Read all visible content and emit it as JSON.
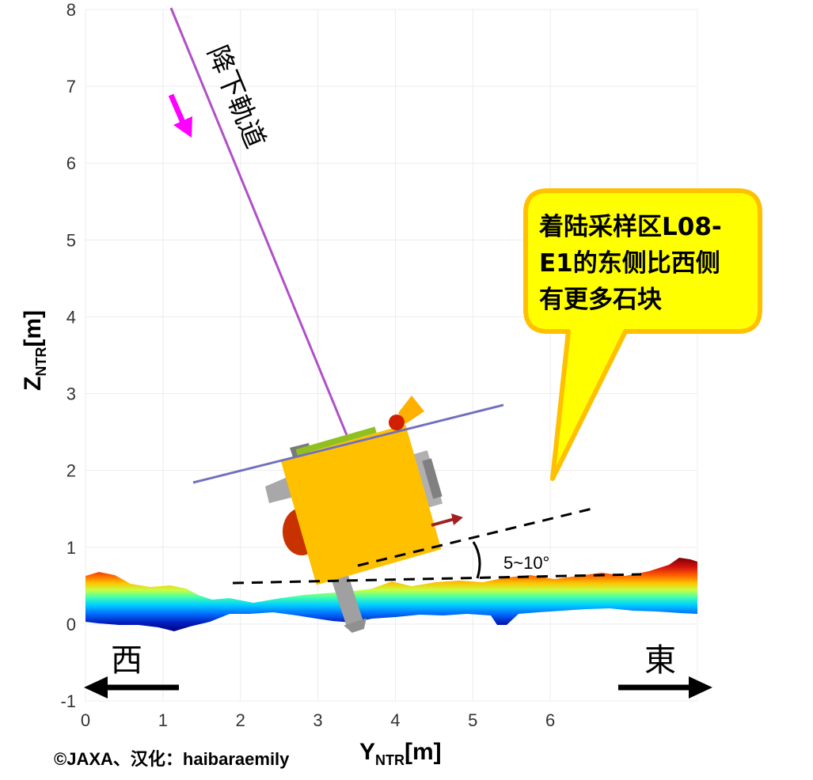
{
  "axes": {
    "x_ticks": [
      "0",
      "1",
      "2",
      "3",
      "4",
      "5",
      "6"
    ],
    "y_ticks": [
      "-1",
      "0",
      "1",
      "2",
      "3",
      "4",
      "5",
      "6",
      "7",
      "8"
    ],
    "x_label_main": "Y",
    "x_label_sub": "NTR",
    "x_label_unit": "[m]",
    "y_label_main": "Z",
    "y_label_sub": "NTR",
    "y_label_unit": "[m]",
    "xlim": [
      0,
      7.9
    ],
    "ylim": [
      -1,
      8
    ]
  },
  "labels": {
    "descent_orbit": "降下軌道",
    "west": "西",
    "east": "東",
    "slope_angle": "5~10°",
    "credit": "©JAXA、汉化：haibaraemily"
  },
  "callout": {
    "line1": "着陆采样区L08-",
    "line2": "E1的东侧比西侧",
    "line3": "有更多石块"
  },
  "colors": {
    "orbit_line": "#b050c8",
    "arrow_magenta": "#ff00ff",
    "spacecraft_body": "#ffc000",
    "spacecraft_plane": "#7070c0",
    "bubble_fill": "#ffff00",
    "bubble_border": "#ffc000"
  },
  "icons": {
    "descent_direction": "arrow-down-right-icon",
    "west_arrow": "arrow-left-icon",
    "east_arrow": "arrow-right-icon"
  }
}
